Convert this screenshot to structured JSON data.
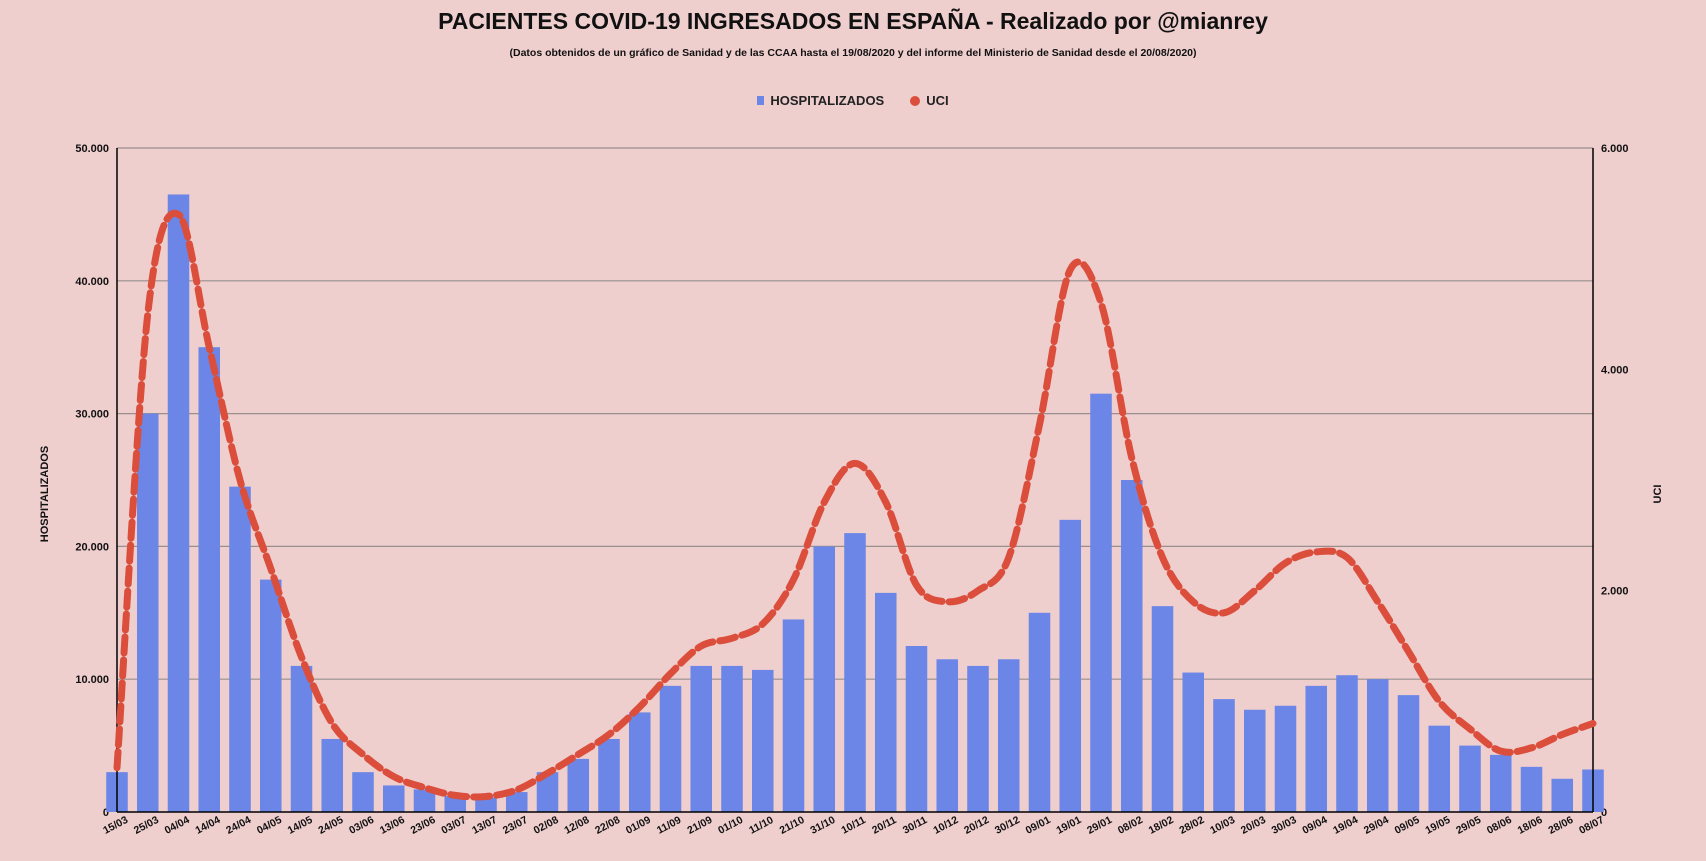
{
  "title": "PACIENTES COVID-19 INGRESADOS EN ESPAÑA - Realizado por @mianrey",
  "subtitle": "(Datos obtenidos de un gráfico de Sanidad y de las CCAA hasta el 19/08/2020 y del informe del Ministerio de Sanidad desde el 20/08/2020)",
  "colors": {
    "background": "#efcece",
    "bars": "#6b86e6",
    "line": "#db4e3c",
    "grid": "#9a8f8f"
  },
  "chart_data": {
    "type": "bar+line",
    "title": "PACIENTES COVID-19 INGRESADOS EN ESPAÑA - Realizado por @mianrey",
    "ylabel": "HOSPITALIZADOS",
    "y2label": "UCI",
    "ylim": [
      0,
      50000
    ],
    "y2lim": [
      0,
      6000
    ],
    "yticks": [
      "0",
      "10.000",
      "20.000",
      "30.000",
      "40.000",
      "50.000"
    ],
    "y2ticks": [
      "0",
      "2.000",
      "4.000",
      "6.000"
    ],
    "grid": true,
    "legend_position": "top-center",
    "categories": [
      "15/03",
      "25/03",
      "04/04",
      "14/04",
      "24/04",
      "04/05",
      "14/05",
      "24/05",
      "03/06",
      "13/06",
      "23/06",
      "03/07",
      "13/07",
      "23/07",
      "02/08",
      "12/08",
      "22/08",
      "01/09",
      "11/09",
      "21/09",
      "01/10",
      "11/10",
      "21/10",
      "31/10",
      "10/11",
      "20/11",
      "30/11",
      "10/12",
      "20/12",
      "30/12",
      "09/01",
      "19/01",
      "29/01",
      "08/02",
      "18/02",
      "28/02",
      "10/03",
      "20/03",
      "30/03",
      "09/04",
      "19/04",
      "29/04",
      "09/05",
      "19/05",
      "29/05",
      "08/06",
      "18/06",
      "28/06",
      "08/07"
    ],
    "series": [
      {
        "name": "HOSPITALIZADOS",
        "type": "bar",
        "color": "#6b86e6",
        "values": [
          3000,
          30000,
          46500,
          35000,
          24500,
          17500,
          11000,
          5500,
          3000,
          2000,
          1700,
          1200,
          1100,
          1500,
          3000,
          4000,
          5500,
          7500,
          9500,
          11000,
          11000,
          10700,
          14500,
          20000,
          21000,
          16500,
          12500,
          11500,
          11000,
          11500,
          15000,
          22000,
          31500,
          25000,
          15500,
          10500,
          8500,
          7700,
          8000,
          9500,
          10300,
          10000,
          8800,
          6500,
          5000,
          4300,
          3400,
          2500,
          3200
        ]
      },
      {
        "name": "UCI",
        "type": "line",
        "color": "#db4e3c",
        "values": [
          400,
          4500,
          5400,
          4200,
          3000,
          2200,
          1400,
          800,
          520,
          320,
          220,
          150,
          140,
          200,
          350,
          520,
          700,
          950,
          1250,
          1500,
          1570,
          1700,
          2100,
          2800,
          3150,
          2800,
          2050,
          1900,
          2000,
          2300,
          3500,
          4900,
          4600,
          3200,
          2300,
          1900,
          1800,
          2000,
          2250,
          2350,
          2300,
          1900,
          1450,
          1000,
          750,
          550,
          580,
          700,
          800
        ]
      }
    ]
  }
}
